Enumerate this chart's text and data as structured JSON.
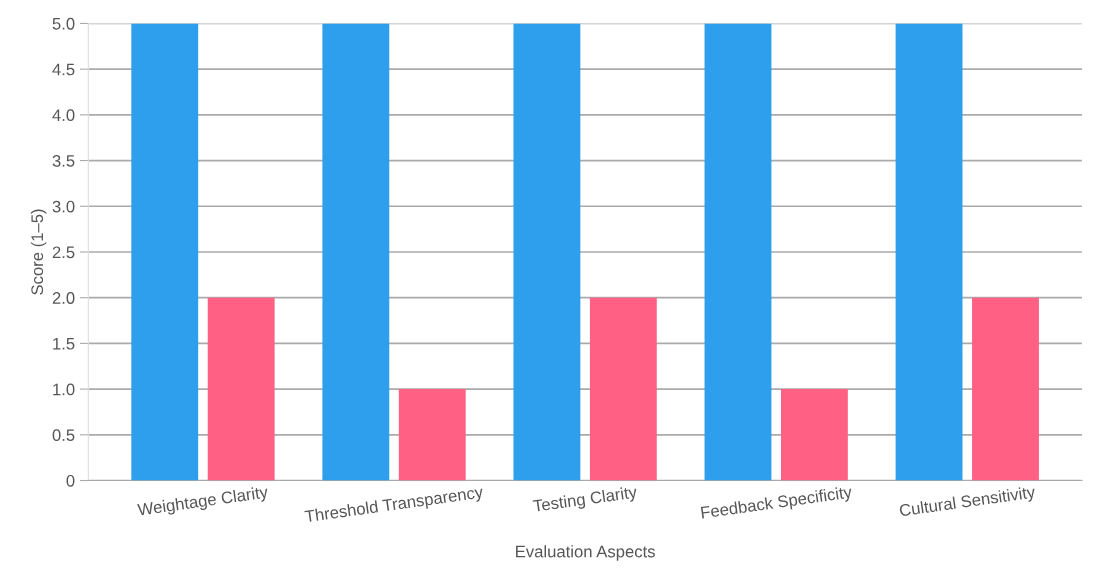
{
  "chart_data": {
    "type": "bar",
    "xlabel": "Evaluation Aspects",
    "ylabel": "Score (1–5)",
    "categories": [
      "Weightage Clarity",
      "Threshold Transparency",
      "Testing Clarity",
      "Feedback Specificity",
      "Cultural Sensitivity"
    ],
    "series": [
      {
        "color": "#2d9fec",
        "values": [
          5,
          5,
          5,
          5,
          5
        ]
      },
      {
        "color": "#ff6084",
        "values": [
          2,
          1,
          2,
          1,
          2
        ]
      }
    ],
    "ylim": [
      0,
      5
    ],
    "yticks": [
      0,
      {
        "value": 0.5,
        "label": "0.5"
      },
      {
        "value": 1,
        "label": "1.0"
      },
      {
        "value": 1.5,
        "label": "1.5"
      },
      {
        "value": 2,
        "label": "2.0"
      },
      {
        "value": 2.5,
        "label": "2.5"
      },
      {
        "value": 3,
        "label": "3.0"
      },
      {
        "value": 3.5,
        "label": "3.5"
      },
      {
        "value": 4,
        "label": "4.0"
      },
      {
        "value": 4.5,
        "label": "4.5"
      },
      {
        "value": 5,
        "label": "5.0"
      }
    ],
    "grid": "y"
  }
}
